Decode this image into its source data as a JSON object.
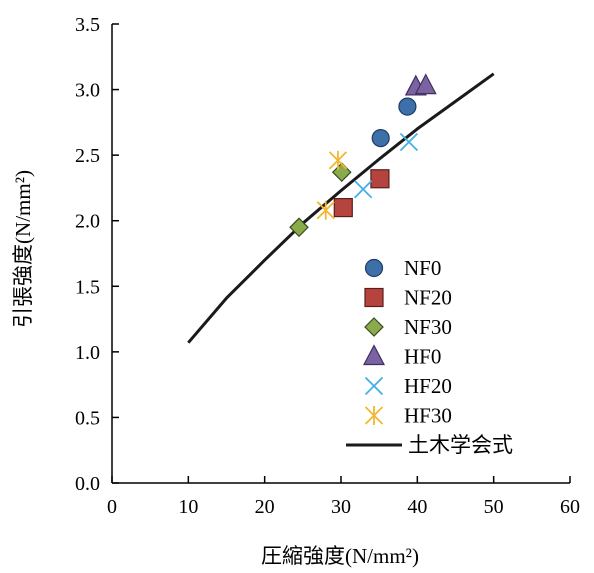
{
  "chart_data": {
    "type": "scatter",
    "xlabel": "圧縮強度(N/mm²)",
    "ylabel": "引張強度(N/mm²)",
    "xlim": [
      0,
      60
    ],
    "ylim": [
      0,
      3.5
    ],
    "xticks": [
      0,
      10,
      20,
      30,
      40,
      50,
      60
    ],
    "yticks": [
      0.0,
      0.5,
      1.0,
      1.5,
      2.0,
      2.5,
      3.0,
      3.5
    ],
    "xtick_labels": [
      "0",
      "10",
      "20",
      "30",
      "40",
      "50",
      "60"
    ],
    "ytick_labels": [
      "0.0",
      "0.5",
      "1.0",
      "1.5",
      "2.0",
      "2.5",
      "3.0",
      "3.5"
    ],
    "grid": false,
    "legend_position": "bottom-right",
    "series": [
      {
        "name": "NF0",
        "marker": "circle",
        "color": "#3d6fa8",
        "stroke": "#1f3d66",
        "points": [
          [
            35.2,
            2.63
          ],
          [
            38.7,
            2.87
          ]
        ]
      },
      {
        "name": "NF20",
        "marker": "square",
        "color": "#b5443f",
        "stroke": "#5a1f1c",
        "points": [
          [
            30.3,
            2.1
          ],
          [
            35.1,
            2.32
          ]
        ]
      },
      {
        "name": "NF30",
        "marker": "diamond",
        "color": "#8aab4b",
        "stroke": "#3a4d1f",
        "points": [
          [
            24.5,
            1.95
          ],
          [
            30.1,
            2.37
          ]
        ]
      },
      {
        "name": "HF0",
        "marker": "triangle",
        "color": "#7b62a3",
        "stroke": "#3f2f5c",
        "points": [
          [
            39.8,
            3.02
          ],
          [
            41.1,
            3.03
          ]
        ]
      },
      {
        "name": "HF20",
        "marker": "x",
        "color": "#42b0e8",
        "stroke": "#42b0e8",
        "points": [
          [
            32.9,
            2.24
          ],
          [
            38.9,
            2.6
          ]
        ]
      },
      {
        "name": "HF30",
        "marker": "star",
        "color": "#f2b632",
        "stroke": "#f2b632",
        "points": [
          [
            28.0,
            2.08
          ],
          [
            29.6,
            2.46
          ]
        ]
      },
      {
        "name": "土木学会式",
        "marker": "line",
        "color": "#1a1a1a",
        "stroke": "#1a1a1a",
        "points": [
          [
            10,
            1.07
          ],
          [
            15,
            1.41
          ],
          [
            20,
            1.7
          ],
          [
            25,
            1.98
          ],
          [
            30,
            2.23
          ],
          [
            35,
            2.47
          ],
          [
            40,
            2.7
          ],
          [
            45,
            2.91
          ],
          [
            50,
            3.12
          ]
        ]
      }
    ]
  }
}
